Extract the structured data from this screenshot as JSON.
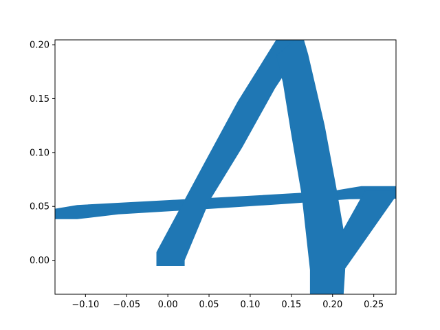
{
  "chart_data": {
    "type": "area",
    "title": "",
    "xlabel": "",
    "ylabel": "",
    "xlim": [
      -0.137,
      0.277
    ],
    "ylim": [
      -0.0315,
      0.2045
    ],
    "grid": false,
    "legend": "none",
    "x_ticks": [
      -0.1,
      -0.05,
      0.0,
      0.05,
      0.1,
      0.15,
      0.2,
      0.25
    ],
    "x_tick_labels": [
      "−0.10",
      "−0.05",
      "0.00",
      "0.05",
      "0.10",
      "0.15",
      "0.20",
      "0.25"
    ],
    "y_ticks": [
      0.0,
      0.05,
      0.1,
      0.15,
      0.2
    ],
    "y_tick_labels": [
      "0.00",
      "0.05",
      "0.10",
      "0.15",
      "0.20"
    ],
    "series": [
      {
        "color": "#1f77b4",
        "shapes": [
          {
            "polygon": [
              [
                -0.137,
                0.0475
              ],
              [
                -0.11,
                0.051
              ],
              [
                0.0,
                0.0555
              ],
              [
                0.1,
                0.0595
              ],
              [
                0.2,
                0.064
              ],
              [
                0.235,
                0.0685
              ],
              [
                0.277,
                0.0685
              ],
              [
                0.277,
                0.0575
              ],
              [
                0.22,
                0.057
              ],
              [
                0.15,
                0.053
              ],
              [
                0.05,
                0.048
              ],
              [
                -0.06,
                0.043
              ],
              [
                -0.11,
                0.0385
              ],
              [
                -0.137,
                0.0385
              ]
            ]
          },
          {
            "polygon": [
              [
                -0.0135,
                0.0075
              ],
              [
                0.045,
                0.0905
              ],
              [
                0.085,
                0.147
              ],
              [
                0.1315,
                0.204
              ],
              [
                0.1645,
                0.204
              ],
              [
                0.15,
                0.183
              ],
              [
                0.13,
                0.16
              ],
              [
                0.09,
                0.105
              ],
              [
                0.05,
                0.055
              ],
              [
                0.02,
                0.0
              ],
              [
                0.02,
                -0.005
              ],
              [
                -0.0135,
                -0.005
              ]
            ]
          },
          {
            "polygon": [
              [
                0.132,
                0.19
              ],
              [
                0.153,
                0.204
              ],
              [
                0.165,
                0.204
              ],
              [
                0.17,
                0.191
              ],
              [
                0.19,
                0.125
              ],
              [
                0.205,
                0.064
              ],
              [
                0.213,
                0.028
              ],
              [
                0.24,
                0.065
              ],
              [
                0.277,
                0.065
              ],
              [
                0.277,
                0.06
              ],
              [
                0.215,
                -0.0075
              ],
              [
                0.213,
                -0.0315
              ],
              [
                0.173,
                -0.0315
              ],
              [
                0.173,
                -0.009
              ],
              [
                0.163,
                0.06
              ],
              [
                0.15,
                0.118
              ],
              [
                0.14,
                0.165
              ]
            ]
          }
        ]
      }
    ]
  }
}
